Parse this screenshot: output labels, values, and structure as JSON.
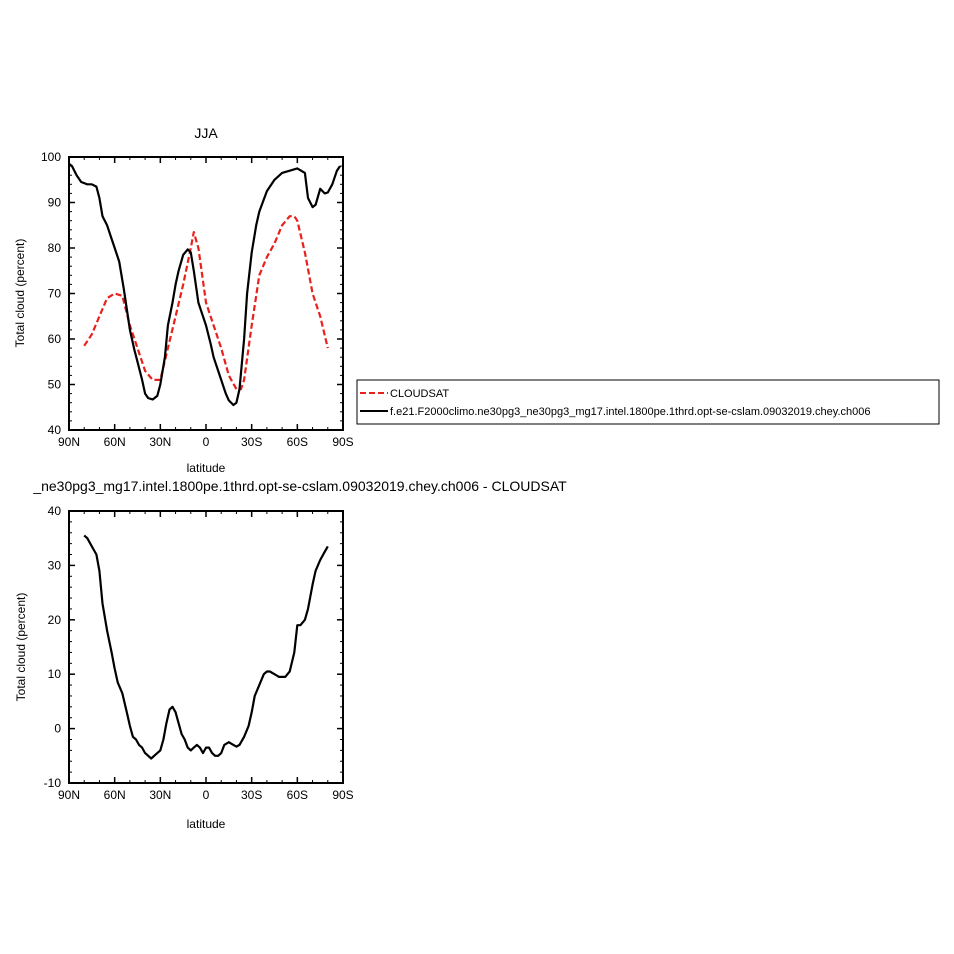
{
  "chart_data": [
    {
      "type": "line",
      "title": "JJA",
      "xlabel": "latitude",
      "ylabel": "Total cloud (percent)",
      "xlim": [
        90,
        -90
      ],
      "ylim": [
        40,
        100
      ],
      "xticks": [
        90,
        60,
        30,
        0,
        -30,
        -60,
        -90
      ],
      "xtick_labels": [
        "90N",
        "60N",
        "30N",
        "0",
        "30S",
        "60S",
        "90S"
      ],
      "yticks": [
        40,
        50,
        60,
        70,
        80,
        90,
        100
      ],
      "ytick_labels": [
        "40",
        "50",
        "60",
        "70",
        "80",
        "90",
        "100"
      ],
      "legend_position": "right",
      "series": [
        {
          "name": "CLOUDSAT",
          "color": "#e8211d",
          "dash": "dashed",
          "x": [
            80,
            75,
            70,
            65,
            60,
            55,
            50,
            45,
            40,
            35,
            30,
            25,
            20,
            15,
            10,
            8,
            5,
            0,
            -5,
            -10,
            -15,
            -20,
            -23,
            -25,
            -30,
            -35,
            -40,
            -45,
            -50,
            -55,
            -58,
            -60,
            -65,
            -70,
            -75,
            -80
          ],
          "y": [
            58.5,
            61,
            65,
            69,
            70,
            69.5,
            63,
            58,
            53,
            51,
            51,
            58,
            65,
            72,
            80,
            83.5,
            80,
            68,
            63,
            58,
            52,
            49,
            49,
            51,
            63,
            74,
            78,
            81,
            85,
            87,
            87,
            86,
            79,
            70,
            65,
            58
          ]
        },
        {
          "name": "f.e21.F2000climo.ne30pg3_ne30pg3_mg17.intel.1800pe.1thrd.opt-se-cslam.09032019.chey.ch006",
          "color": "#000000",
          "dash": "solid",
          "x": [
            90,
            88,
            85,
            82,
            78,
            75,
            72,
            70,
            68,
            65,
            62,
            60,
            57,
            54,
            50,
            47,
            45,
            42,
            40,
            38,
            35,
            32,
            30,
            27,
            25,
            22,
            20,
            18,
            15,
            12,
            10,
            8,
            5,
            3,
            0,
            -3,
            -5,
            -8,
            -10,
            -13,
            -15,
            -18,
            -20,
            -22,
            -25,
            -27,
            -30,
            -33,
            -35,
            -40,
            -45,
            -50,
            -55,
            -60,
            -65,
            -67,
            -70,
            -72,
            -75,
            -78,
            -80,
            -83,
            -86,
            -88
          ],
          "y": [
            98.5,
            98,
            96,
            94.5,
            94,
            94,
            93.5,
            91,
            87,
            85,
            82,
            80,
            77,
            71,
            62,
            57.5,
            55,
            51,
            48,
            47,
            46.7,
            47.5,
            50,
            56,
            63,
            68,
            72,
            75,
            78.5,
            79.7,
            79,
            75,
            68,
            66,
            63,
            59,
            56,
            53,
            51,
            48,
            46.5,
            45.5,
            46,
            49,
            60,
            70,
            79,
            85,
            88,
            92.5,
            95,
            96.5,
            97,
            97.5,
            96.5,
            91,
            89,
            89.5,
            93,
            92,
            92.2,
            94,
            97,
            98
          ]
        }
      ]
    },
    {
      "type": "line",
      "title": "_ne30pg3_mg17.intel.1800pe.1thrd.opt-se-cslam.09032019.chey.ch006 - CLOUDSAT",
      "xlabel": "latitude",
      "ylabel": "Total cloud (percent)",
      "xlim": [
        90,
        -90
      ],
      "ylim": [
        -10,
        40
      ],
      "xticks": [
        90,
        60,
        30,
        0,
        -30,
        -60,
        -90
      ],
      "xtick_labels": [
        "90N",
        "60N",
        "30N",
        "0",
        "30S",
        "60S",
        "90S"
      ],
      "yticks": [
        -10,
        0,
        10,
        20,
        30,
        40
      ],
      "ytick_labels": [
        "-10",
        "0",
        "10",
        "20",
        "30",
        "40"
      ],
      "series": [
        {
          "color": "#000000",
          "dash": "solid",
          "x": [
            80,
            78,
            75,
            72,
            70,
            68,
            65,
            62,
            60,
            58,
            55,
            52,
            50,
            48,
            46,
            44,
            42,
            40,
            38,
            36,
            34,
            32,
            30,
            28,
            26,
            24,
            22,
            20,
            18,
            16,
            14,
            12,
            10,
            8,
            6,
            4,
            2,
            0,
            -2,
            -4,
            -6,
            -8,
            -10,
            -12,
            -15,
            -18,
            -20,
            -22,
            -25,
            -28,
            -30,
            -32,
            -35,
            -38,
            -40,
            -42,
            -45,
            -48,
            -50,
            -52,
            -55,
            -58,
            -60,
            -62,
            -65,
            -67,
            -70,
            -72,
            -75,
            -78,
            -80
          ],
          "y": [
            35.5,
            35,
            33.5,
            32,
            29,
            23,
            18,
            14,
            11,
            8.5,
            6.5,
            3,
            0.5,
            -1.5,
            -2,
            -3,
            -3.5,
            -4.5,
            -5,
            -5.5,
            -5,
            -4.5,
            -4,
            -2,
            1,
            3.5,
            4,
            3,
            1,
            -1,
            -2,
            -3.5,
            -4,
            -3.5,
            -3,
            -3.5,
            -4.5,
            -3.5,
            -3.5,
            -4.5,
            -5,
            -5,
            -4.5,
            -3,
            -2.5,
            -3,
            -3.3,
            -3,
            -1.5,
            0.5,
            3,
            6,
            8,
            10,
            10.5,
            10.5,
            10,
            9.5,
            9.5,
            9.5,
            10.5,
            14,
            19,
            19,
            20,
            22,
            26.5,
            29,
            31,
            32.5,
            33.5
          ]
        }
      ]
    }
  ]
}
